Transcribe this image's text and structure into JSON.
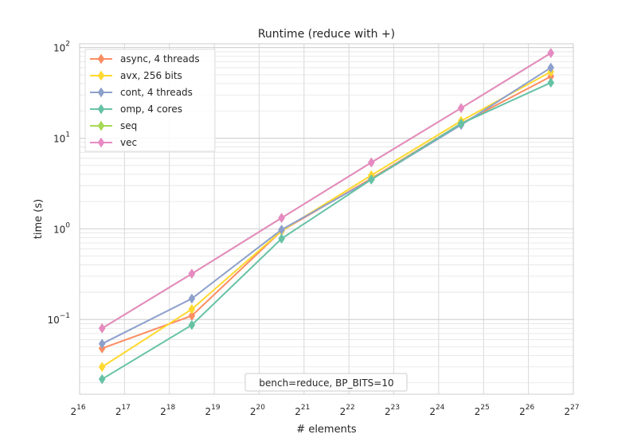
{
  "chart_data": {
    "type": "line",
    "title": "Runtime (reduce with +)",
    "xlabel": "# elements",
    "ylabel": "time (s)",
    "x_scale": "log2",
    "y_scale": "log10",
    "xlim_exponent": [
      16,
      27
    ],
    "ylim": [
      0.015,
      110
    ],
    "x_exponents": [
      16.5,
      18.5,
      20.5,
      22.5,
      24.5,
      26.5
    ],
    "x_tick_exponents": [
      "16",
      "17",
      "18",
      "19",
      "20",
      "21",
      "22",
      "23",
      "24",
      "25",
      "26",
      "27"
    ],
    "x_tick_base": "2",
    "y_ticks": [
      {
        "value": 0.1,
        "mantissa": "10",
        "exponent": "−1"
      },
      {
        "value": 1,
        "mantissa": "10",
        "exponent": "0"
      },
      {
        "value": 10,
        "mantissa": "10",
        "exponent": "1"
      },
      {
        "value": 100,
        "mantissa": "10",
        "exponent": "2"
      }
    ],
    "grid": true,
    "legend_position": "top-left",
    "annotation": "bench=reduce, BP_BITS=10",
    "series": [
      {
        "name": "async, 4 threads",
        "color": "#fc8d62",
        "values": [
          0.048,
          0.11,
          0.95,
          3.6,
          14.5,
          48
        ]
      },
      {
        "name": "avx, 256 bits",
        "color": "#ffd92f",
        "values": [
          0.03,
          0.13,
          0.95,
          3.9,
          15.5,
          54
        ]
      },
      {
        "name": "cont, 4 threads",
        "color": "#8da0cb",
        "values": [
          0.054,
          0.17,
          0.98,
          3.5,
          14.0,
          60
        ]
      },
      {
        "name": "omp, 4 cores",
        "color": "#66c2a5",
        "values": [
          0.022,
          0.087,
          0.78,
          3.5,
          14.5,
          41
        ]
      },
      {
        "name": "seq",
        "color": "#a6d854",
        "values": [
          0.08,
          0.32,
          1.32,
          5.4,
          21.5,
          87
        ]
      },
      {
        "name": "vec",
        "color": "#e78ac3",
        "values": [
          0.08,
          0.32,
          1.32,
          5.4,
          21.5,
          87
        ]
      }
    ]
  }
}
